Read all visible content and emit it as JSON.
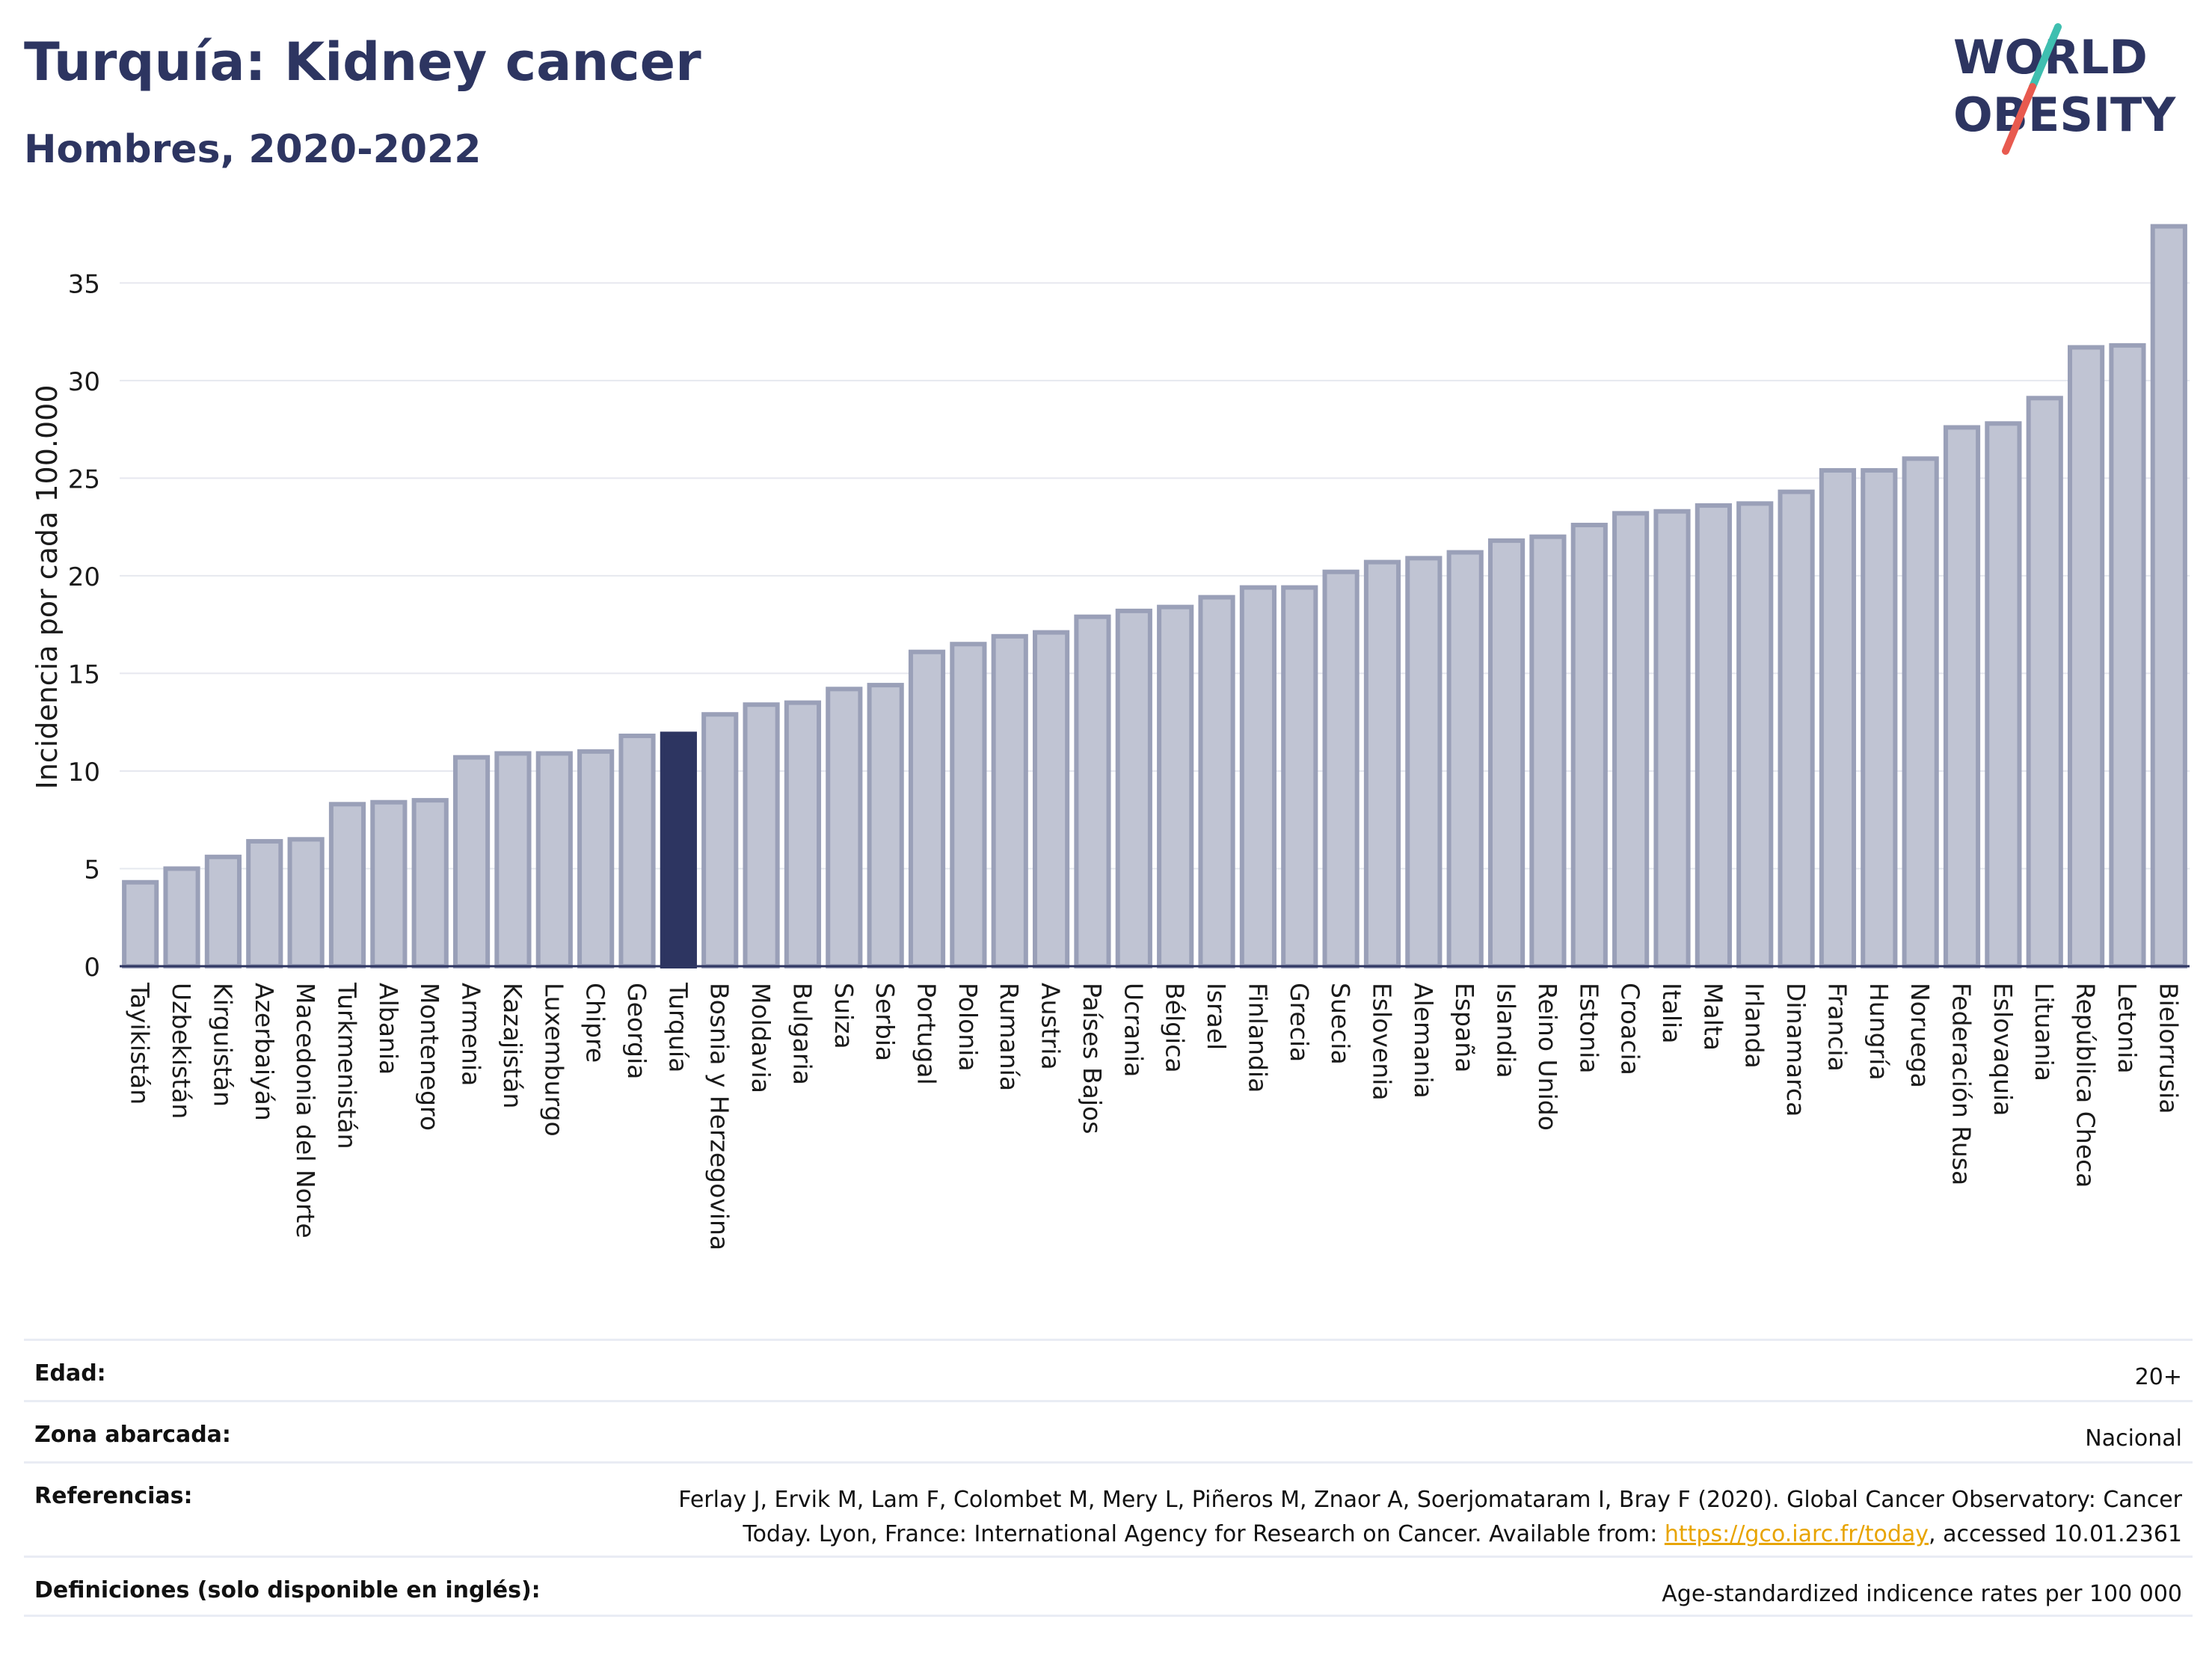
{
  "header": {
    "title": "Turquía: Kidney cancer",
    "subtitle": "Hombres, 2020-2022",
    "logo_line1": "WORLD",
    "logo_line2": "OBESITY"
  },
  "colors": {
    "bar": "#c0c4d3",
    "bar_border": "#9aa0b8",
    "highlight": "#2d3561",
    "logo_teal": "#3fbfb0",
    "logo_red": "#e85a4f",
    "link": "#e8a400"
  },
  "chart_data": {
    "type": "bar",
    "title": "Turquía: Kidney cancer",
    "subtitle": "Hombres, 2020-2022",
    "ylabel": "Incidencia por cada 100.000",
    "xlabel": "",
    "ylim": [
      0,
      38
    ],
    "yticks": [
      0,
      5,
      10,
      15,
      20,
      25,
      30,
      35
    ],
    "grid": true,
    "highlight": "Turquía",
    "categories": [
      "Tayikistán",
      "Uzbekistán",
      "Kirguistán",
      "Azerbaiyán",
      "Macedonia del Norte",
      "Turkmenistán",
      "Albania",
      "Montenegro",
      "Armenia",
      "Kazajistán",
      "Luxemburgo",
      "Chipre",
      "Georgia",
      "Turquía",
      "Bosnia y Herzegovina",
      "Moldavia",
      "Bulgaria",
      "Suiza",
      "Serbia",
      "Portugal",
      "Polonia",
      "Rumanía",
      "Austria",
      "Países Bajos",
      "Ucrania",
      "Bélgica",
      "Israel",
      "Finlandia",
      "Grecia",
      "Suecia",
      "Eslovenia",
      "Alemania",
      "España",
      "Islandia",
      "Reino Unido",
      "Estonia",
      "Croacia",
      "Italia",
      "Malta",
      "Irlanda",
      "Dinamarca",
      "Francia",
      "Hungría",
      "Noruega",
      "Federación Rusa",
      "Eslovaquia",
      "Lituania",
      "República Checa",
      "Letonia",
      "Bielorrusia"
    ],
    "values": [
      4.3,
      5.0,
      5.6,
      6.4,
      6.5,
      8.3,
      8.4,
      8.5,
      10.7,
      10.9,
      10.9,
      11.0,
      11.8,
      11.9,
      12.9,
      13.4,
      13.5,
      14.2,
      14.4,
      16.1,
      16.5,
      16.9,
      17.1,
      17.9,
      18.2,
      18.4,
      18.9,
      19.4,
      19.4,
      20.2,
      20.7,
      20.9,
      21.2,
      21.8,
      22.0,
      22.6,
      23.2,
      23.3,
      23.6,
      23.7,
      24.3,
      25.4,
      25.4,
      26.0,
      27.6,
      27.8,
      29.1,
      31.7,
      31.8,
      37.9
    ]
  },
  "footer": {
    "rows": [
      {
        "label": "Edad:",
        "value": "20+"
      },
      {
        "label": "Zona abarcada:",
        "value": "Nacional"
      },
      {
        "label": "Referencias:",
        "value_line1": "Ferlay J, Ervik M, Lam F, Colombet M, Mery L, Piñeros M, Znaor A, Soerjomataram I, Bray F (2020). Global Cancer Observatory: Cancer",
        "value_line2_pre": "Today. Lyon, France: International Agency for Research on Cancer. Available from: ",
        "link": "https://gco.iarc.fr/today",
        "value_line2_post": ", accessed 10.01.2361"
      },
      {
        "label": "Definiciones (solo disponible en inglés):",
        "value": "Age-standardized indicence rates per 100 000"
      }
    ]
  }
}
